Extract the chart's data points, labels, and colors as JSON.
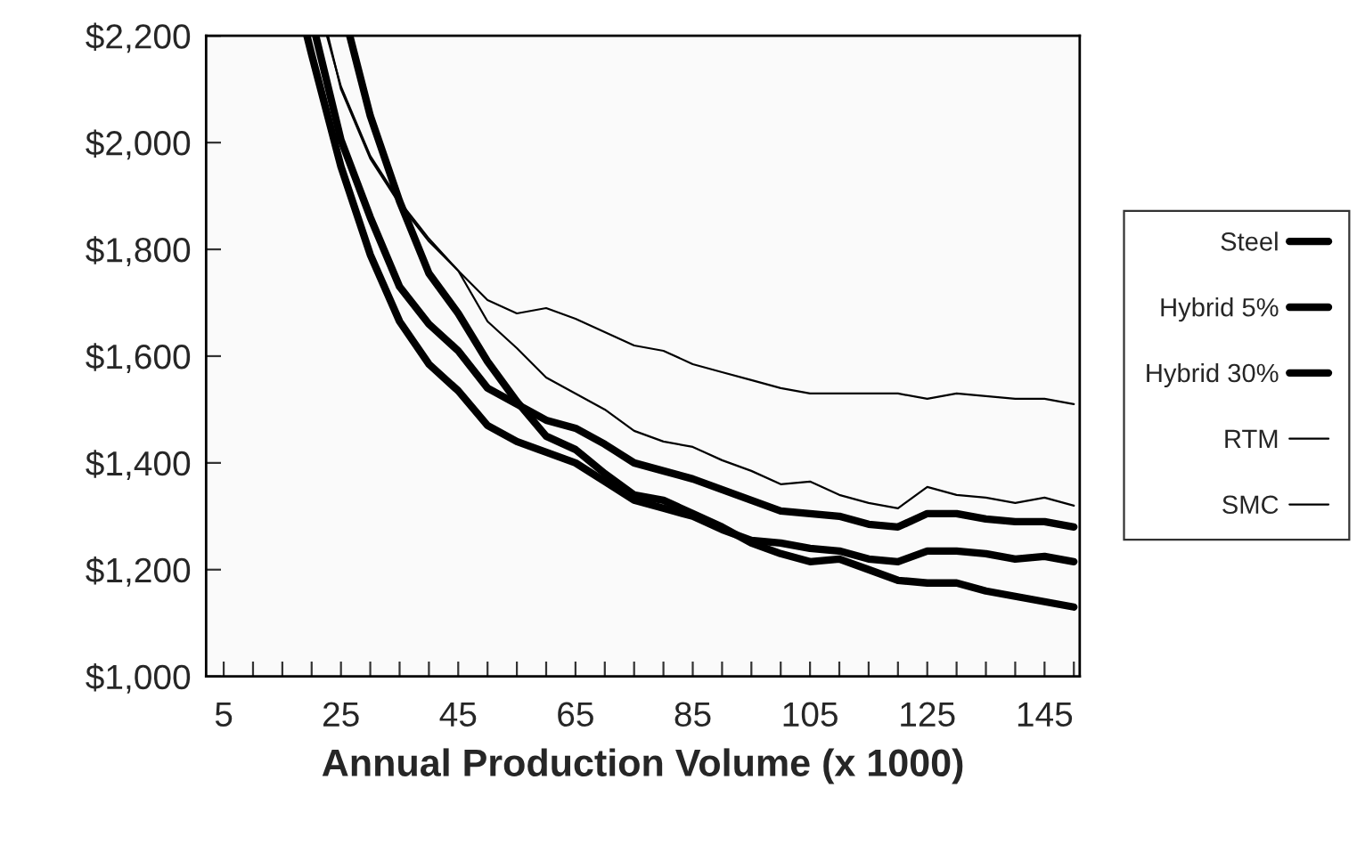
{
  "chart_data": {
    "type": "line",
    "xlabel": "Annual Production Volume (x 1000)",
    "xlim": [
      2,
      151
    ],
    "ylim": [
      1000,
      2200
    ],
    "xticks": [
      5,
      {
        "value": 10,
        "label": null
      },
      {
        "value": 15,
        "label": null
      },
      {
        "value": 20,
        "label": null
      },
      25,
      {
        "value": 30,
        "label": null
      },
      {
        "value": 35,
        "label": null
      },
      {
        "value": 40,
        "label": null
      },
      45,
      {
        "value": 50,
        "label": null
      },
      {
        "value": 55,
        "label": null
      },
      {
        "value": 60,
        "label": null
      },
      65,
      {
        "value": 70,
        "label": null
      },
      {
        "value": 75,
        "label": null
      },
      {
        "value": 80,
        "label": null
      },
      85,
      {
        "value": 90,
        "label": null
      },
      {
        "value": 95,
        "label": null
      },
      {
        "value": 100,
        "label": null
      },
      105,
      {
        "value": 110,
        "label": null
      },
      {
        "value": 115,
        "label": null
      },
      {
        "value": 120,
        "label": null
      },
      125,
      {
        "value": 130,
        "label": null
      },
      {
        "value": 135,
        "label": null
      },
      {
        "value": 140,
        "label": null
      },
      145,
      {
        "value": 150,
        "label": null
      }
    ],
    "yticks": [
      {
        "value": 1000,
        "label": "$1,000"
      },
      {
        "value": 1200,
        "label": "$1,200"
      },
      {
        "value": 1400,
        "label": "$1,400"
      },
      {
        "value": 1600,
        "label": "$1,600"
      },
      {
        "value": 1800,
        "label": "$1,800"
      },
      {
        "value": 2000,
        "label": "$2,000"
      },
      {
        "value": 2200,
        "label": "$2,200"
      }
    ],
    "grid": false,
    "legend": "right",
    "marker": "none",
    "line_style": "solid",
    "series": [
      {
        "name": "Steel",
        "color": "#000000",
        "x": [
          26.5,
          30,
          35,
          40,
          45,
          50,
          55,
          60,
          65,
          70,
          75,
          80,
          85,
          90,
          95,
          100,
          105,
          110,
          115,
          120,
          125,
          130,
          135,
          140,
          145,
          150
        ],
        "values": [
          2200,
          2050,
          1890,
          1755,
          1680,
          1590,
          1515,
          1450,
          1425,
          1380,
          1340,
          1330,
          1305,
          1280,
          1250,
          1230,
          1215,
          1220,
          1200,
          1180,
          1175,
          1175,
          1160,
          1150,
          1140,
          1130
        ]
      },
      {
        "name": "Hybrid 5%",
        "color": "#000000",
        "x": [
          19.2,
          20,
          25,
          30,
          35,
          40,
          45,
          50,
          55,
          60,
          65,
          70,
          75,
          80,
          85,
          90,
          95,
          100,
          105,
          110,
          115,
          120,
          125,
          130,
          135,
          140,
          145,
          150
        ],
        "values": [
          2200,
          2165,
          1955,
          1790,
          1665,
          1585,
          1535,
          1470,
          1440,
          1420,
          1400,
          1365,
          1330,
          1315,
          1300,
          1275,
          1255,
          1250,
          1240,
          1235,
          1220,
          1215,
          1235,
          1235,
          1230,
          1220,
          1225,
          1215
        ]
      },
      {
        "name": "Hybrid 30%",
        "color": "#000000",
        "x": [
          20.7,
          25,
          30,
          35,
          40,
          45,
          50,
          55,
          60,
          65,
          70,
          75,
          80,
          85,
          90,
          95,
          100,
          105,
          110,
          115,
          120,
          125,
          130,
          135,
          140,
          145,
          150
        ],
        "values": [
          2200,
          2005,
          1860,
          1730,
          1660,
          1610,
          1540,
          1510,
          1480,
          1465,
          1435,
          1400,
          1385,
          1370,
          1350,
          1330,
          1310,
          1305,
          1300,
          1285,
          1280,
          1305,
          1305,
          1295,
          1290,
          1290,
          1280
        ]
      },
      {
        "name": "RTM",
        "color": "#000000",
        "x": [
          22.6,
          25,
          30,
          35,
          40,
          45,
          50,
          55,
          60,
          65,
          70,
          75,
          80,
          85,
          90,
          95,
          100,
          105,
          110,
          115,
          120,
          125,
          130,
          135,
          140,
          145,
          150
        ],
        "values": [
          2200,
          2105,
          1975,
          1890,
          1820,
          1760,
          1665,
          1615,
          1560,
          1530,
          1500,
          1460,
          1440,
          1430,
          1405,
          1385,
          1360,
          1365,
          1340,
          1325,
          1315,
          1355,
          1340,
          1335,
          1325,
          1335,
          1320
        ]
      },
      {
        "name": "SMC",
        "color": "#000000",
        "x": [
          22.8,
          25,
          30,
          35,
          40,
          45,
          50,
          55,
          60,
          65,
          70,
          75,
          80,
          85,
          90,
          95,
          100,
          105,
          110,
          115,
          120,
          125,
          130,
          135,
          140,
          145,
          150
        ],
        "values": [
          2200,
          2100,
          1970,
          1885,
          1815,
          1760,
          1705,
          1680,
          1690,
          1670,
          1645,
          1620,
          1610,
          1585,
          1570,
          1555,
          1540,
          1530,
          1530,
          1530,
          1530,
          1520,
          1530,
          1525,
          1520,
          1520,
          1510
        ]
      }
    ]
  }
}
